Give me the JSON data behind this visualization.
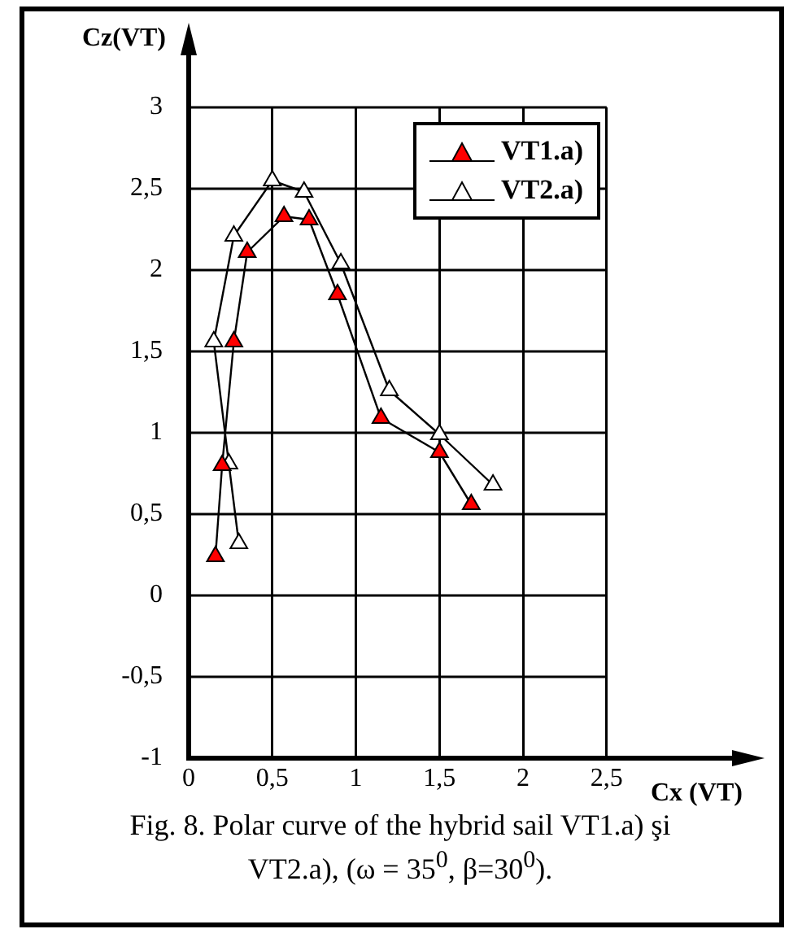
{
  "chart_data": {
    "type": "line",
    "xlabel": "Cx (VT)",
    "ylabel": "Cz(VT)",
    "annotations": [
      "Fig. 8. Polar curve of the hybrid sail VT1.a) şi VT2.a), (ω = 35$^{0}$, β=30$^{0}$)."
    ],
    "xlim": [
      0,
      3.25
    ],
    "ylim": [
      -1,
      3
    ],
    "xticks": [
      0,
      {
        "value": 0.5,
        "label": "0,5"
      },
      1,
      {
        "value": 1.5,
        "label": "1,5"
      },
      2,
      {
        "value": 2.5,
        "label": "2,5"
      }
    ],
    "yticks": [
      -1,
      {
        "value": -0.5,
        "label": "-0,5"
      },
      0,
      {
        "value": 0.5,
        "label": "0,5"
      },
      1,
      {
        "value": 1.5,
        "label": "1,5"
      },
      2,
      {
        "value": 2.5,
        "label": "2,5"
      },
      3
    ],
    "grid": true,
    "legend": "top right",
    "marker": "triangle",
    "line_style": "solid",
    "series": [
      {
        "name": "VT1.a)",
        "color": "#ff0000",
        "x": [
          0.16,
          0.2,
          0.27,
          0.35,
          0.57,
          0.72,
          0.89,
          1.15,
          1.5,
          1.69
        ],
        "values": [
          0.24,
          0.8,
          1.56,
          2.11,
          2.33,
          2.31,
          1.85,
          1.09,
          0.88,
          0.56
        ]
      },
      {
        "name": "VT2.a)",
        "color": "#ffffff",
        "x": [
          0.3,
          0.24,
          0.15,
          0.27,
          0.5,
          0.69,
          0.91,
          1.2,
          1.5,
          1.82
        ],
        "values": [
          0.32,
          0.81,
          1.56,
          2.21,
          2.55,
          2.48,
          2.04,
          1.26,
          0.99,
          0.68
        ]
      }
    ]
  }
}
